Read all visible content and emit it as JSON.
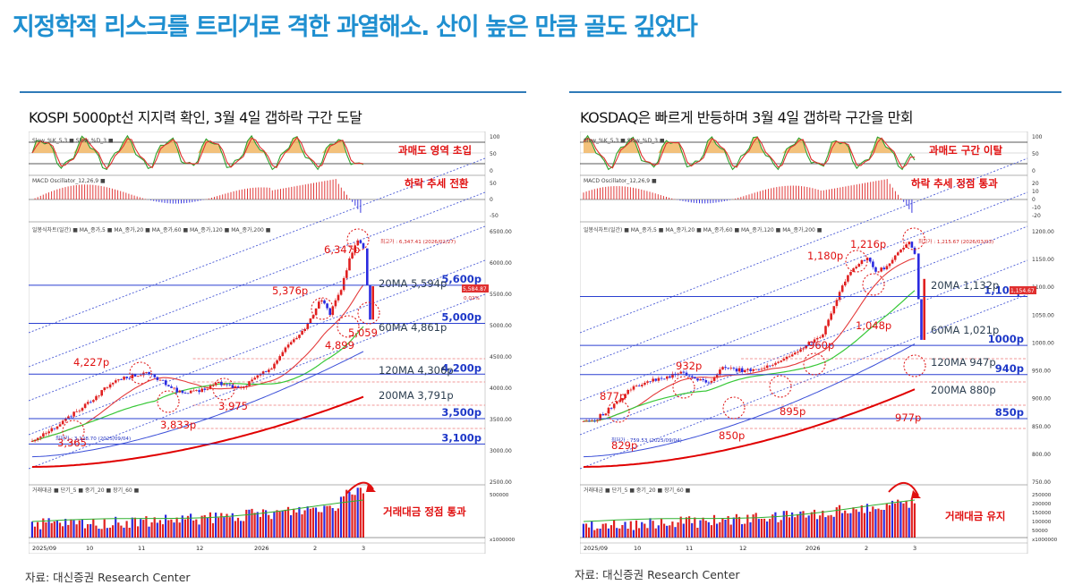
{
  "headline": "지정학적 리스크를 트리거로 격한 과열해소. 산이 높은 만큼 골도 깊었다",
  "panels": [
    {
      "title": "KOSPI 5000pt선 지지력 확인, 3월 4일 갭하락 구간 도달",
      "source": "자료: 대신증권 Research Center",
      "ind_labels": {
        "slow": "Slow_%K_5,3 ■ Slow_%D_3 ■",
        "macd": "MACD Oscillator_12,26,9 ■",
        "price": "일봉식차트(일간) ■ MA_종가,5 ■ MA_종가,20 ■ MA_종가,60 ■ MA_종가,120 ■ MA_종가,200 ■",
        "volume": "거래대금 ■ 단기_5 ■ 중기_20 ■ 장기_60 ■"
      },
      "stoch_notes": [
        "과매도 영역 초입"
      ],
      "macd_notes": [
        "하락 추세 전환"
      ],
      "volume_notes": [
        "거래대금 정점 통과"
      ],
      "chart_data": {
        "type": "line",
        "title": "KOSPI",
        "x_ticks": [
          "2025/09",
          "10",
          "11",
          "12",
          "2026",
          "2",
          "3"
        ],
        "y_ticks_price": [
          "6500.00",
          "6000.00",
          "5500.00",
          "5000.00",
          "4500.00",
          "4000.00",
          "3500.00",
          "3000.00",
          "2500.00"
        ],
        "y_ticks_stoch": [
          "100",
          "50",
          "0"
        ],
        "y_ticks_macd": [
          "50",
          "0",
          "-50"
        ],
        "y_ticks_volume": [
          "500000",
          "x1000000"
        ],
        "ylim": [
          2500,
          6500
        ],
        "support_levels": [
          {
            "label": "5,600p",
            "value": 5600
          },
          {
            "label": "5,000p",
            "value": 5000
          },
          {
            "label": "4,200p",
            "value": 4200
          },
          {
            "label": "3,500p",
            "value": 3500
          },
          {
            "label": "3,100p",
            "value": 3100
          }
        ],
        "moving_averages": [
          {
            "label": "20MA 5,594p",
            "value": 5594
          },
          {
            "label": "60MA 4,861p",
            "value": 4861
          },
          {
            "label": "120MA 4,306p",
            "value": 4306
          },
          {
            "label": "200MA 3,791p",
            "value": 3791
          }
        ],
        "point_labels": [
          {
            "label": "6,347p",
            "value": 6347
          },
          {
            "label": "5,376p",
            "value": 5376
          },
          {
            "label": "4,899",
            "value": 4899
          },
          {
            "label": "5,059",
            "value": 5059
          },
          {
            "label": "4,227p",
            "value": 4227
          },
          {
            "label": "3,975",
            "value": 3975
          },
          {
            "label": "3,833p",
            "value": 3833
          },
          {
            "label": "3,365",
            "value": 3365
          }
        ],
        "high_note": "최고가 : 6,347.41 (2026/02/27)",
        "low_note": "최저가 : 3,128.70 (2025/09/04)",
        "current_value": "5,584.87",
        "current_change": "0.02%"
      }
    },
    {
      "title": "KOSDAQ은 빠르게 반등하며 3월 4일 갭하락 구간을 만회",
      "source": "자료: 대신증권 Research Center",
      "ind_labels": {
        "slow": "Slow_%K_5,3 ■ Slow_%D_3 ■",
        "macd": "MACD Oscillator_12,26,9 ■",
        "price": "일봉식차트(일간) ■ MA_종가,5 ■ MA_종가,20 ■ MA_종가,60 ■ MA_종가,120 ■ MA_종가,200 ■",
        "volume": "거래대금 ■ 단기_5 ■ 중기_20 ■ 장기_60 ■"
      },
      "stoch_notes": [
        "과매도 구간 이탈"
      ],
      "macd_notes": [
        "하락 추세 정점 통과"
      ],
      "volume_notes": [
        "거래대금 유지"
      ],
      "chart_data": {
        "type": "line",
        "title": "KOSDAQ",
        "x_ticks": [
          "2025/09",
          "10",
          "11",
          "12",
          "2026",
          "2",
          "3"
        ],
        "y_ticks_price": [
          "1200.00",
          "1150.00",
          "1100.00",
          "1050.00",
          "1000.00",
          "950.00",
          "900.00",
          "850.00",
          "800.00",
          "750.00"
        ],
        "y_ticks_stoch": [
          "100",
          "50",
          "0"
        ],
        "y_ticks_macd": [
          "20",
          "10",
          "0",
          "-10",
          "-20"
        ],
        "y_ticks_volume": [
          "250000",
          "200000",
          "150000",
          "100000",
          "50000",
          "x1000000"
        ],
        "ylim": [
          720,
          1240
        ],
        "support_levels": [
          {
            "label": "1,100p",
            "value": 1100
          },
          {
            "label": "1000p",
            "value": 1000
          },
          {
            "label": "940p",
            "value": 940
          },
          {
            "label": "850p",
            "value": 850
          }
        ],
        "moving_averages": [
          {
            "label": "20MA 1,132p",
            "value": 1132
          },
          {
            "label": "60MA 1,021p",
            "value": 1021
          },
          {
            "label": "120MA 947p",
            "value": 947
          },
          {
            "label": "200MA 880p",
            "value": 880
          }
        ],
        "point_labels": [
          {
            "label": "1,216p",
            "value": 1216
          },
          {
            "label": "1,180p",
            "value": 1180
          },
          {
            "label": "1,048p",
            "value": 1048
          },
          {
            "label": "960p",
            "value": 960
          },
          {
            "label": "977p",
            "value": 977
          },
          {
            "label": "932p",
            "value": 932
          },
          {
            "label": "877p",
            "value": 877
          },
          {
            "label": "895p",
            "value": 895
          },
          {
            "label": "850p",
            "value": 850
          },
          {
            "label": "829p",
            "value": 829
          }
        ],
        "high_note": "최고가 : 1,215.67 (2026/03/03)",
        "low_note": "최저가 : 759.53 (2025/09/04)",
        "current_value": "1,154.67",
        "current_change": ""
      }
    }
  ]
}
